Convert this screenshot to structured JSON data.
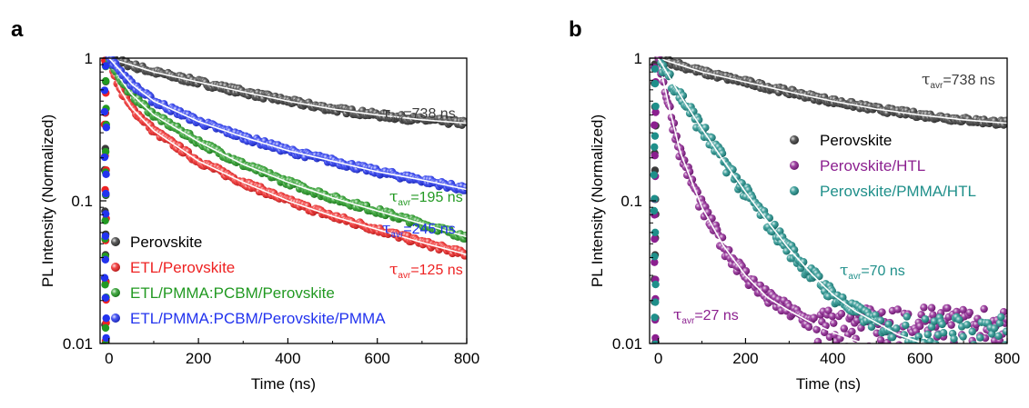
{
  "chart_data": [
    {
      "panel_label": "a",
      "type": "scatter",
      "xlabel": "Time (ns)",
      "ylabel": "PL Intensity (Normalized)",
      "xlim": [
        -20,
        800
      ],
      "ylim": [
        0.01,
        1
      ],
      "yscale": "log",
      "xticks": [
        "0",
        "200",
        "400",
        "600",
        "800"
      ],
      "yticks": [
        "0.01",
        "0.1",
        "1"
      ],
      "legend_position": "bottom-left",
      "series": [
        {
          "name": "Perovskite",
          "color": "#3a3a3a",
          "tau_label": "738 ns",
          "tau_ns": 738,
          "curve": [
            [
              0,
              1.0
            ],
            [
              100,
              0.8
            ],
            [
              200,
              0.68
            ],
            [
              300,
              0.58
            ],
            [
              400,
              0.5
            ],
            [
              500,
              0.44
            ],
            [
              600,
              0.4
            ],
            [
              700,
              0.37
            ],
            [
              800,
              0.35
            ]
          ]
        },
        {
          "name": "ETL/Perovskite",
          "color": "#ee2222",
          "tau_label": "125 ns",
          "tau_ns": 125,
          "curve": [
            [
              0,
              1.0
            ],
            [
              25,
              0.6
            ],
            [
              50,
              0.45
            ],
            [
              100,
              0.31
            ],
            [
              200,
              0.19
            ],
            [
              300,
              0.135
            ],
            [
              400,
              0.1
            ],
            [
              500,
              0.078
            ],
            [
              600,
              0.063
            ],
            [
              700,
              0.051
            ],
            [
              800,
              0.042
            ]
          ]
        },
        {
          "name": "ETL/PMMA:PCBM/Perovskite",
          "color": "#229922",
          "tau_label": "195 ns",
          "tau_ns": 195,
          "curve": [
            [
              0,
              1.0
            ],
            [
              25,
              0.72
            ],
            [
              50,
              0.56
            ],
            [
              100,
              0.4
            ],
            [
              200,
              0.26
            ],
            [
              300,
              0.18
            ],
            [
              400,
              0.135
            ],
            [
              500,
              0.105
            ],
            [
              600,
              0.085
            ],
            [
              700,
              0.069
            ],
            [
              800,
              0.056
            ]
          ]
        },
        {
          "name": "ETL/PMMA:PCBM/Perovskite/PMMA",
          "color": "#2233ee",
          "tau_label": "245 ns",
          "tau_ns": 245,
          "curve": [
            [
              0,
              1.0
            ],
            [
              25,
              0.82
            ],
            [
              50,
              0.66
            ],
            [
              100,
              0.5
            ],
            [
              200,
              0.36
            ],
            [
              300,
              0.28
            ],
            [
              400,
              0.225
            ],
            [
              500,
              0.19
            ],
            [
              600,
              0.16
            ],
            [
              700,
              0.14
            ],
            [
              800,
              0.12
            ]
          ]
        }
      ]
    },
    {
      "panel_label": "b",
      "type": "scatter",
      "xlabel": "Time (ns)",
      "ylabel": "PL Intensity (Normalized)",
      "xlim": [
        -20,
        800
      ],
      "ylim": [
        0.01,
        1
      ],
      "yscale": "log",
      "xticks": [
        "0",
        "200",
        "400",
        "600",
        "800"
      ],
      "yticks": [
        "0.01",
        "0.1",
        "1"
      ],
      "legend_position": "top-right",
      "series": [
        {
          "name": "Perovskite",
          "color": "#3a3a3a",
          "tau_label": "738 ns",
          "tau_ns": 738,
          "curve": [
            [
              0,
              1.0
            ],
            [
              100,
              0.8
            ],
            [
              200,
              0.68
            ],
            [
              300,
              0.58
            ],
            [
              400,
              0.5
            ],
            [
              500,
              0.44
            ],
            [
              600,
              0.4
            ],
            [
              700,
              0.37
            ],
            [
              800,
              0.35
            ]
          ]
        },
        {
          "name": "Perovskite/HTL",
          "color": "#8b1f8f",
          "tau_label": "27 ns",
          "tau_ns": 27,
          "curve": [
            [
              0,
              1.0
            ],
            [
              25,
              0.45
            ],
            [
              50,
              0.22
            ],
            [
              100,
              0.09
            ],
            [
              150,
              0.048
            ],
            [
              200,
              0.03
            ],
            [
              250,
              0.021
            ],
            [
              300,
              0.017
            ],
            [
              350,
              0.014
            ],
            [
              400,
              0.012
            ],
            [
              450,
              0.0105
            ],
            [
              500,
              0.0095
            ]
          ],
          "noise_floor": 0.012
        },
        {
          "name": "Perovskite/PMMA/HTL",
          "color": "#1f8f8a",
          "tau_label": "70 ns",
          "tau_ns": 70,
          "curve": [
            [
              0,
              1.0
            ],
            [
              50,
              0.55
            ],
            [
              100,
              0.32
            ],
            [
              150,
              0.19
            ],
            [
              200,
              0.115
            ],
            [
              250,
              0.072
            ],
            [
              300,
              0.046
            ],
            [
              350,
              0.031
            ],
            [
              400,
              0.022
            ],
            [
              450,
              0.017
            ],
            [
              500,
              0.014
            ],
            [
              550,
              0.0115
            ],
            [
              600,
              0.0102
            ],
            [
              630,
              0.0097
            ]
          ],
          "noise_floor": 0.0105
        }
      ]
    }
  ]
}
